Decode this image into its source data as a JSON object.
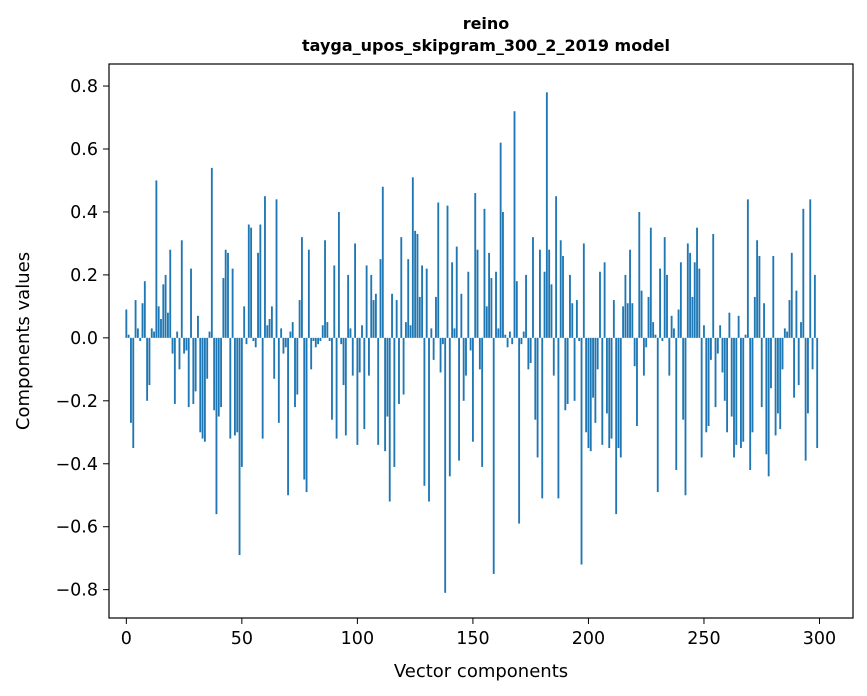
{
  "chart_data": {
    "type": "bar",
    "title": "reino",
    "subtitle": "tayga_upos_skipgram_300_2_2019 model",
    "xlabel": "Vector components",
    "ylabel": "Components values",
    "xlim": [
      -7.5,
      314.5
    ],
    "ylim": [
      -0.89,
      0.87
    ],
    "xticks": [
      0,
      50,
      100,
      150,
      200,
      250,
      300
    ],
    "yticks": [
      -0.8,
      -0.6,
      -0.4,
      -0.2,
      0.0,
      0.2,
      0.4,
      0.6,
      0.8
    ],
    "ytick_labels": [
      "−0.8",
      "−0.6",
      "−0.4",
      "−0.2",
      "0.0",
      "0.2",
      "0.4",
      "0.6",
      "0.8"
    ],
    "grid": false,
    "bar_color": "#1f77b4",
    "values": [
      0.09,
      0.01,
      -0.27,
      -0.35,
      0.12,
      0.03,
      -0.01,
      0.11,
      0.18,
      -0.2,
      -0.15,
      0.03,
      0.02,
      0.5,
      0.1,
      0.06,
      0.17,
      0.2,
      0.08,
      0.28,
      -0.05,
      -0.21,
      0.02,
      -0.1,
      0.31,
      -0.05,
      -0.04,
      -0.22,
      0.22,
      -0.21,
      -0.17,
      0.07,
      -0.3,
      -0.32,
      -0.33,
      -0.13,
      0.02,
      0.54,
      -0.23,
      -0.56,
      -0.25,
      -0.22,
      0.19,
      0.28,
      0.27,
      -0.32,
      0.22,
      -0.31,
      -0.3,
      -0.69,
      -0.41,
      0.1,
      -0.02,
      0.36,
      0.35,
      -0.01,
      -0.03,
      0.27,
      0.36,
      -0.32,
      0.45,
      0.04,
      0.06,
      0.1,
      -0.13,
      0.44,
      -0.27,
      0.03,
      -0.05,
      -0.03,
      -0.5,
      0.02,
      0.05,
      -0.22,
      -0.18,
      0.12,
      0.32,
      -0.45,
      -0.49,
      0.28,
      -0.1,
      -0.01,
      -0.03,
      -0.02,
      -0.01,
      0.04,
      0.31,
      0.05,
      -0.01,
      -0.26,
      0.23,
      -0.32,
      0.4,
      -0.02,
      -0.15,
      -0.31,
      0.2,
      0.03,
      -0.12,
      0.3,
      -0.34,
      -0.11,
      0.04,
      -0.29,
      0.23,
      -0.12,
      0.2,
      0.12,
      0.14,
      -0.34,
      0.25,
      0.48,
      -0.36,
      -0.25,
      -0.52,
      0.14,
      -0.41,
      0.12,
      -0.21,
      0.32,
      -0.18,
      0.05,
      0.25,
      0.04,
      0.51,
      0.34,
      0.33,
      0.13,
      0.23,
      -0.47,
      0.22,
      -0.52,
      0.03,
      -0.07,
      0.13,
      0.43,
      -0.11,
      -0.02,
      -0.81,
      0.42,
      -0.44,
      0.24,
      0.03,
      0.29,
      -0.39,
      0.14,
      -0.2,
      -0.12,
      0.21,
      -0.04,
      -0.33,
      0.46,
      0.28,
      -0.1,
      -0.41,
      0.41,
      0.1,
      0.27,
      0.19,
      -0.75,
      0.21,
      0.03,
      0.62,
      0.4,
      0.01,
      -0.03,
      0.02,
      -0.02,
      0.72,
      0.18,
      -0.59,
      -0.02,
      0.02,
      0.2,
      -0.1,
      -0.08,
      0.32,
      -0.26,
      -0.38,
      0.28,
      -0.51,
      0.21,
      0.78,
      0.28,
      0.17,
      -0.12,
      0.45,
      -0.51,
      0.31,
      0.26,
      -0.23,
      -0.21,
      0.2,
      0.11,
      -0.2,
      0.12,
      -0.01,
      -0.72,
      0.3,
      -0.3,
      -0.35,
      -0.36,
      -0.19,
      -0.27,
      -0.1,
      0.21,
      -0.34,
      0.24,
      -0.24,
      -0.35,
      -0.32,
      0.12,
      -0.56,
      -0.35,
      -0.38,
      0.1,
      0.2,
      0.11,
      0.28,
      0.11,
      -0.09,
      -0.28,
      0.4,
      0.15,
      -0.12,
      -0.03,
      0.13,
      0.35,
      0.05,
      0.01,
      -0.49,
      0.22,
      -0.01,
      0.32,
      0.2,
      -0.12,
      0.07,
      0.03,
      -0.42,
      0.09,
      0.24,
      -0.26,
      -0.5,
      0.3,
      0.27,
      0.13,
      0.24,
      0.35,
      0.22,
      -0.38,
      0.04,
      -0.3,
      -0.28,
      -0.07,
      0.33,
      -0.22,
      -0.05,
      0.04,
      -0.11,
      -0.2,
      -0.3,
      0.08,
      -0.25,
      -0.38,
      -0.34,
      0.07,
      -0.35,
      -0.33,
      0.01,
      0.44,
      -0.42,
      -0.3,
      0.13,
      0.31,
      0.26,
      -0.22,
      0.11,
      -0.37,
      -0.44,
      -0.16,
      0.26,
      -0.31,
      -0.24,
      -0.29,
      -0.1,
      0.03,
      0.02,
      0.12,
      0.27,
      -0.19,
      0.15,
      -0.15,
      0.05,
      0.41,
      -0.39,
      -0.24,
      0.44,
      -0.1,
      0.2,
      -0.35
    ]
  }
}
